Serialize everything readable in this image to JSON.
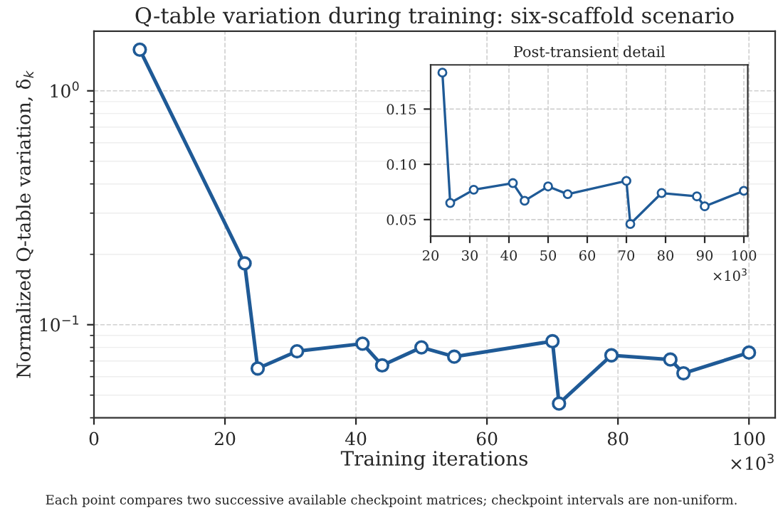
{
  "chart_data": [
    {
      "type": "line",
      "title": "Q-table variation during training: six-scaffold scenario",
      "xlabel": "Training iterations",
      "ylabel": "Normalized Q-table variation, δ$_{k}$",
      "x": [
        7,
        23,
        25,
        31,
        41,
        44,
        50,
        55,
        70,
        71,
        79,
        88,
        90,
        100
      ],
      "series": [
        {
          "color": "#1f5a96",
          "values": [
            1.5,
            0.183,
            0.065,
            0.077,
            0.083,
            0.067,
            0.08,
            0.073,
            0.085,
            0.046,
            0.074,
            0.071,
            0.062,
            0.076
          ]
        }
      ],
      "log": "y",
      "xlim": [
        0,
        104
      ],
      "ylim": [
        0.04,
        1.8
      ],
      "xticks": [
        0,
        20,
        40,
        60,
        80,
        100
      ],
      "yticks": [
        {
          "value": 1,
          "label": "10$^{0}$"
        },
        {
          "value": 0.1,
          "label": "10$^{−1}$"
        }
      ],
      "grid": true,
      "marker": "circle",
      "line_style": "solid",
      "legend": false,
      "annotations": [
        "×10$^{3}$",
        "Each point compares two successive available checkpoint matrices; checkpoint intervals are non-uniform."
      ]
    },
    {
      "type": "line",
      "title": "Post-transient detail",
      "x": [
        23,
        25,
        31,
        41,
        44,
        50,
        55,
        70,
        71,
        79,
        88,
        90,
        100
      ],
      "series": [
        {
          "color": "#1f5a96",
          "values": [
            0.183,
            0.065,
            0.077,
            0.083,
            0.067,
            0.08,
            0.073,
            0.085,
            0.046,
            0.074,
            0.071,
            0.062,
            0.076
          ]
        }
      ],
      "xlim": [
        20,
        101
      ],
      "ylim": [
        0.035,
        0.19
      ],
      "xticks": [
        20,
        30,
        40,
        50,
        60,
        70,
        80,
        90,
        100
      ],
      "yticks": [
        {
          "value": 0.05,
          "label": "0.05"
        },
        {
          "value": 0.1,
          "label": "0.10"
        },
        {
          "value": 0.15,
          "label": "0.15"
        }
      ],
      "grid": true,
      "marker": "circle",
      "line_style": "solid",
      "legend": false,
      "annotations": [
        "×10$^{3}$"
      ]
    }
  ]
}
